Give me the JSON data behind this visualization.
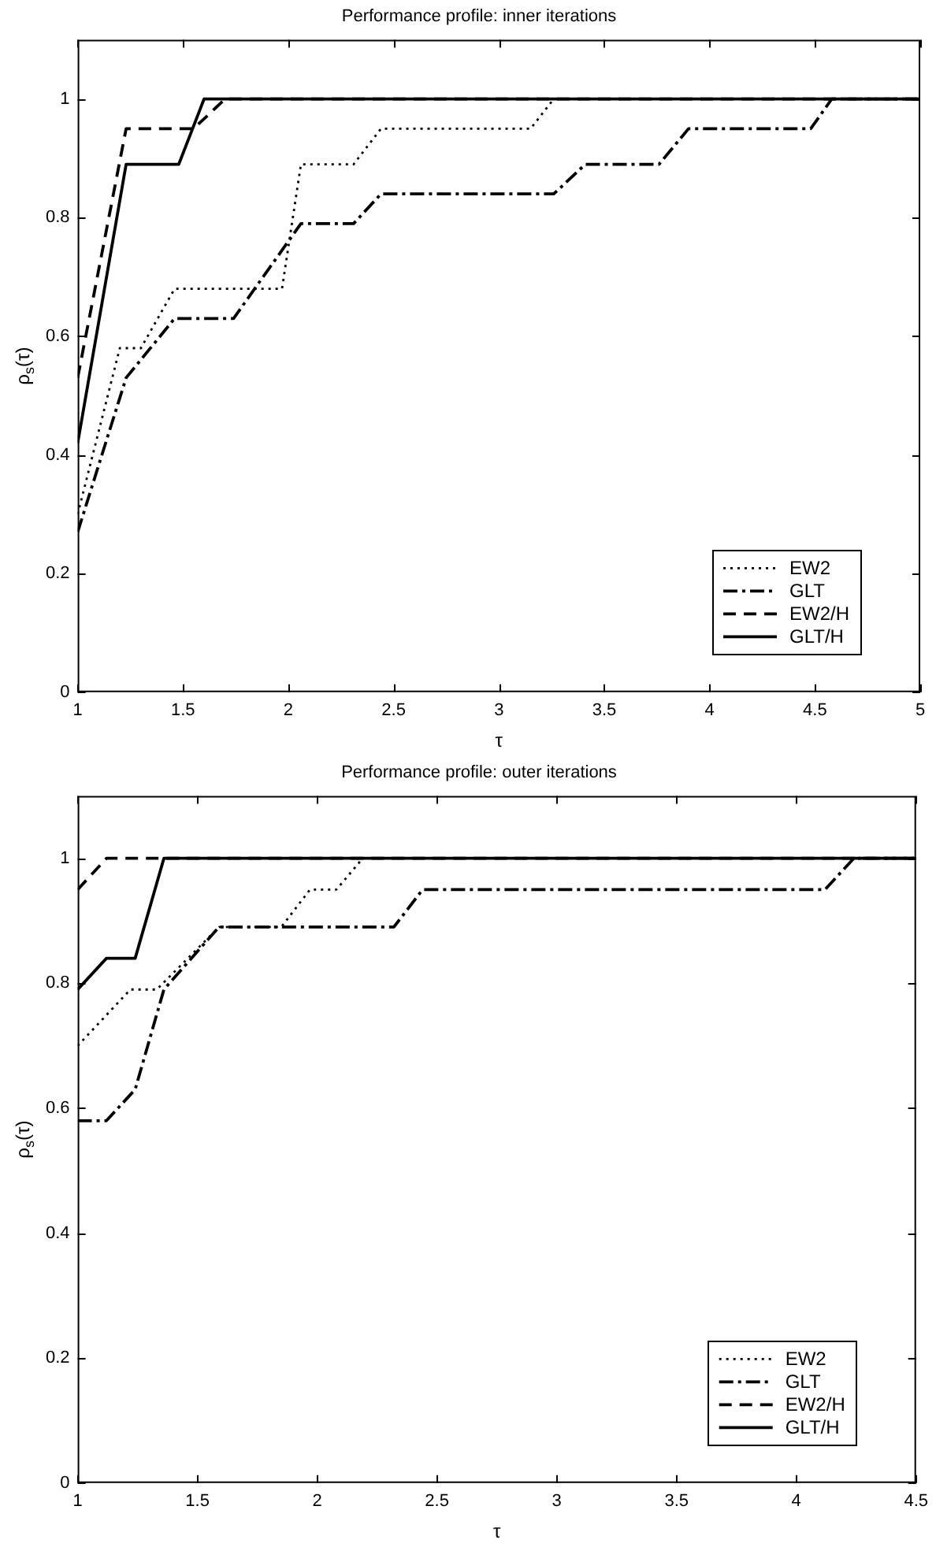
{
  "chart_data": [
    {
      "type": "line",
      "title": "Performance profile: inner iterations",
      "xlabel": "τ",
      "ylabel": "ρ$_{s}$(τ)",
      "xlim": [
        1,
        5
      ],
      "ylim": [
        0,
        1.1
      ],
      "xticks": [
        1,
        1.5,
        2,
        2.5,
        3,
        3.5,
        4,
        4.5,
        5
      ],
      "yticks": [
        0,
        0.2,
        0.4,
        0.6,
        0.8,
        1
      ],
      "grid": false,
      "legend": "bottom right",
      "marker": "none",
      "series": [
        {
          "name": "EW2",
          "color": "#000000",
          "line_style": "dotted",
          "x": [
            1,
            1.2,
            1.3,
            1.46,
            1.97,
            2.06,
            2.31,
            2.44,
            3.15,
            3.26,
            5
          ],
          "values": [
            0.3,
            0.58,
            0.58,
            0.68,
            0.68,
            0.89,
            0.89,
            0.95,
            0.95,
            1,
            1
          ]
        },
        {
          "name": "GLT",
          "color": "#000000",
          "line_style": "dashdot",
          "x": [
            1,
            1.23,
            1.46,
            1.74,
            2.06,
            2.31,
            2.44,
            3.26,
            3.41,
            3.76,
            3.9,
            4.48,
            4.58,
            5
          ],
          "values": [
            0.27,
            0.53,
            0.63,
            0.63,
            0.79,
            0.79,
            0.84,
            0.84,
            0.89,
            0.89,
            0.95,
            0.95,
            1,
            1
          ]
        },
        {
          "name": "EW2/H",
          "color": "#000000",
          "line_style": "dashed",
          "x": [
            1,
            1.23,
            1.55,
            1.7,
            5
          ],
          "values": [
            0.53,
            0.95,
            0.95,
            1,
            1
          ]
        },
        {
          "name": "GLT/H",
          "color": "#000000",
          "line_style": "solid",
          "x": [
            1,
            1.23,
            1.48,
            1.6,
            5
          ],
          "values": [
            0.42,
            0.89,
            0.89,
            1,
            1
          ]
        }
      ]
    },
    {
      "type": "line",
      "title": "Performance profile: outer iterations",
      "xlabel": "τ",
      "ylabel": "ρ$_{s}$(τ)",
      "xlim": [
        1,
        4.5
      ],
      "ylim": [
        0,
        1.1
      ],
      "xticks": [
        1,
        1.5,
        2,
        2.5,
        3,
        3.5,
        4,
        4.5
      ],
      "yticks": [
        0,
        0.2,
        0.4,
        0.6,
        0.8,
        1
      ],
      "grid": false,
      "legend": "bottom right",
      "marker": "none",
      "series": [
        {
          "name": "EW2",
          "color": "#000000",
          "line_style": "dotted",
          "x": [
            1,
            1.22,
            1.33,
            1.59,
            1.85,
            1.97,
            2.08,
            2.19,
            4.5
          ],
          "values": [
            0.7,
            0.79,
            0.79,
            0.89,
            0.89,
            0.95,
            0.95,
            1,
            1
          ]
        },
        {
          "name": "GLT",
          "color": "#000000",
          "line_style": "dashdot",
          "x": [
            1,
            1.12,
            1.24,
            1.36,
            1.59,
            2.32,
            2.44,
            4.12,
            4.24,
            4.5
          ],
          "values": [
            0.58,
            0.58,
            0.63,
            0.79,
            0.89,
            0.89,
            0.95,
            0.95,
            1,
            1
          ]
        },
        {
          "name": "EW2/H",
          "color": "#000000",
          "line_style": "dashed",
          "x": [
            1,
            1.12,
            4.5
          ],
          "values": [
            0.95,
            1,
            1
          ]
        },
        {
          "name": "GLT/H",
          "color": "#000000",
          "line_style": "solid",
          "x": [
            1,
            1.12,
            1.24,
            1.36,
            4.5
          ],
          "values": [
            0.79,
            0.84,
            0.84,
            1,
            1
          ]
        }
      ]
    }
  ]
}
